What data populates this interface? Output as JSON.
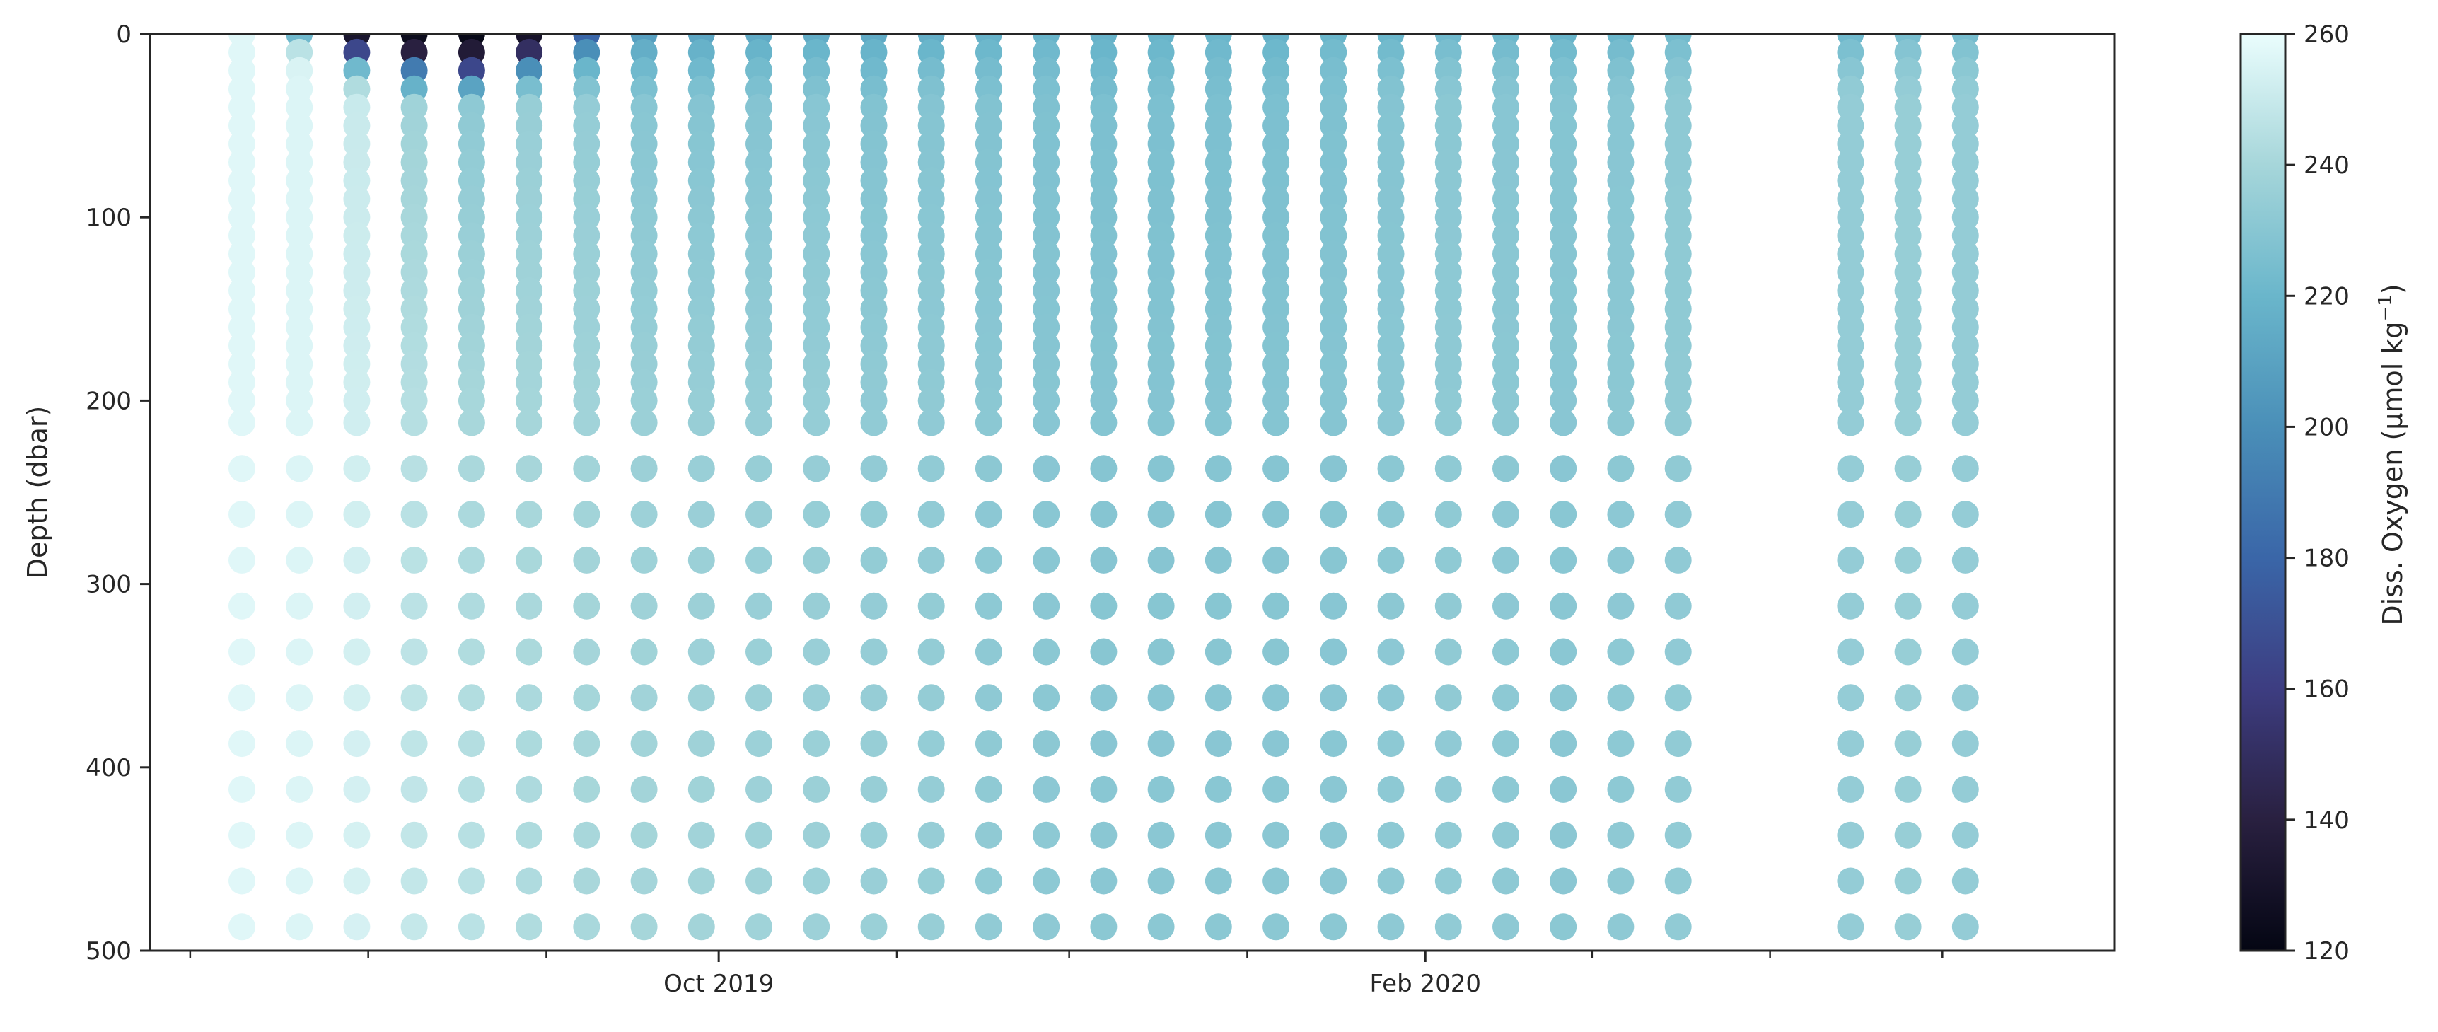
{
  "chart_data": {
    "type": "scatter",
    "title": "",
    "xlabel": "",
    "ylabel": "Depth (dbar)",
    "y_axis_inverted": true,
    "ylim": [
      0,
      500
    ],
    "yticks": [
      0,
      100,
      200,
      300,
      400,
      500
    ],
    "xlim": [
      "2019-06-24",
      "2020-05-31"
    ],
    "x_major_ticks": [
      {
        "date": "2019-10-01",
        "label": "Oct 2019"
      },
      {
        "date": "2020-02-01",
        "label": "Feb 2020"
      }
    ],
    "x_minor_tick_dates": [
      "2019-07-01",
      "2019-08-01",
      "2019-09-01",
      "2019-11-01",
      "2019-12-01",
      "2020-01-01",
      "2020-03-01",
      "2020-04-01",
      "2020-05-01"
    ],
    "grid": false,
    "colorbar": {
      "label": "Diss. Oxygen (μmol kg",
      "label_superscript": "−1",
      "label_suffix": ")",
      "range": [
        120,
        260
      ],
      "ticks": [
        120,
        140,
        160,
        180,
        200,
        220,
        240,
        260
      ],
      "colormap": "ice",
      "stops": [
        "#040613",
        "#292040",
        "#3d3d81",
        "#3a66a8",
        "#4a8fb8",
        "#6ab6cb",
        "#a6d6da",
        "#eafdfd"
      ]
    },
    "depths": [
      0,
      10,
      20,
      30,
      40,
      50,
      60,
      70,
      80,
      90,
      100,
      110,
      120,
      130,
      140,
      150,
      160,
      170,
      180,
      190,
      200,
      212,
      237,
      262,
      287,
      312,
      337,
      362,
      387,
      412,
      437,
      462,
      487
    ],
    "profiles": [
      {
        "date": "2019-07-10",
        "surface_oxygen": [
          257,
          257,
          257,
          257,
          257
        ],
        "deep_oxygen": 257
      },
      {
        "date": "2019-07-20",
        "surface_oxygen": [
          222,
          246,
          255,
          256,
          256
        ],
        "deep_oxygen": 256
      },
      {
        "date": "2019-07-30",
        "surface_oxygen": [
          132,
          165,
          222,
          243,
          250
        ],
        "deep_oxygen": 254
      },
      {
        "date": "2019-08-09",
        "surface_oxygen": [
          125,
          140,
          190,
          218,
          238
        ],
        "deep_oxygen": 249
      },
      {
        "date": "2019-08-19",
        "surface_oxygen": [
          122,
          136,
          165,
          210,
          232
        ],
        "deep_oxygen": 246
      },
      {
        "date": "2019-08-29",
        "surface_oxygen": [
          130,
          150,
          200,
          225,
          235
        ],
        "deep_oxygen": 243
      },
      {
        "date": "2019-09-08",
        "surface_oxygen": [
          180,
          200,
          220,
          228,
          234
        ],
        "deep_oxygen": 241
      },
      {
        "date": "2019-09-18",
        "surface_oxygen": [
          208,
          216,
          222,
          226,
          230
        ],
        "deep_oxygen": 240
      },
      {
        "date": "2019-09-28",
        "surface_oxygen": [
          212,
          218,
          222,
          226,
          229
        ],
        "deep_oxygen": 239
      },
      {
        "date": "2019-10-08",
        "surface_oxygen": [
          214,
          219,
          223,
          226,
          229
        ],
        "deep_oxygen": 238
      },
      {
        "date": "2019-10-18",
        "surface_oxygen": [
          215,
          220,
          224,
          227,
          230
        ],
        "deep_oxygen": 237
      },
      {
        "date": "2019-10-28",
        "surface_oxygen": [
          214,
          219,
          222,
          225,
          228
        ],
        "deep_oxygen": 236
      },
      {
        "date": "2019-11-07",
        "surface_oxygen": [
          216,
          220,
          224,
          227,
          229
        ],
        "deep_oxygen": 235
      },
      {
        "date": "2019-11-17",
        "surface_oxygen": [
          218,
          221,
          224,
          226,
          228
        ],
        "deep_oxygen": 233
      },
      {
        "date": "2019-11-27",
        "surface_oxygen": [
          219,
          222,
          224,
          226,
          227
        ],
        "deep_oxygen": 232
      },
      {
        "date": "2019-12-07",
        "surface_oxygen": [
          218,
          220,
          222,
          224,
          226
        ],
        "deep_oxygen": 231
      },
      {
        "date": "2019-12-17",
        "surface_oxygen": [
          219,
          221,
          223,
          225,
          226
        ],
        "deep_oxygen": 231
      },
      {
        "date": "2019-12-27",
        "surface_oxygen": [
          220,
          222,
          224,
          225,
          226
        ],
        "deep_oxygen": 231
      },
      {
        "date": "2020-01-06",
        "surface_oxygen": [
          218,
          221,
          223,
          225,
          226
        ],
        "deep_oxygen": 231
      },
      {
        "date": "2020-01-16",
        "surface_oxygen": [
          220,
          223,
          225,
          226,
          227
        ],
        "deep_oxygen": 231
      },
      {
        "date": "2020-01-26",
        "surface_oxygen": [
          220,
          223,
          226,
          228,
          229
        ],
        "deep_oxygen": 232
      },
      {
        "date": "2020-02-05",
        "surface_oxygen": [
          222,
          225,
          228,
          230,
          231
        ],
        "deep_oxygen": 233
      },
      {
        "date": "2020-02-15",
        "surface_oxygen": [
          221,
          224,
          227,
          229,
          230
        ],
        "deep_oxygen": 232
      },
      {
        "date": "2020-02-25",
        "surface_oxygen": [
          219,
          223,
          226,
          228,
          229
        ],
        "deep_oxygen": 231
      },
      {
        "date": "2020-03-06",
        "surface_oxygen": [
          220,
          224,
          227,
          229,
          230
        ],
        "deep_oxygen": 232
      },
      {
        "date": "2020-03-16",
        "surface_oxygen": [
          223,
          226,
          229,
          231,
          232
        ],
        "deep_oxygen": 233
      },
      {
        "date": "2020-04-15",
        "surface_oxygen": [
          222,
          226,
          230,
          233,
          234
        ],
        "deep_oxygen": 234
      },
      {
        "date": "2020-04-25",
        "surface_oxygen": [
          225,
          229,
          232,
          234,
          235
        ],
        "deep_oxygen": 235
      },
      {
        "date": "2020-05-05",
        "surface_oxygen": [
          224,
          228,
          231,
          233,
          234
        ],
        "deep_oxygen": 234
      }
    ]
  }
}
